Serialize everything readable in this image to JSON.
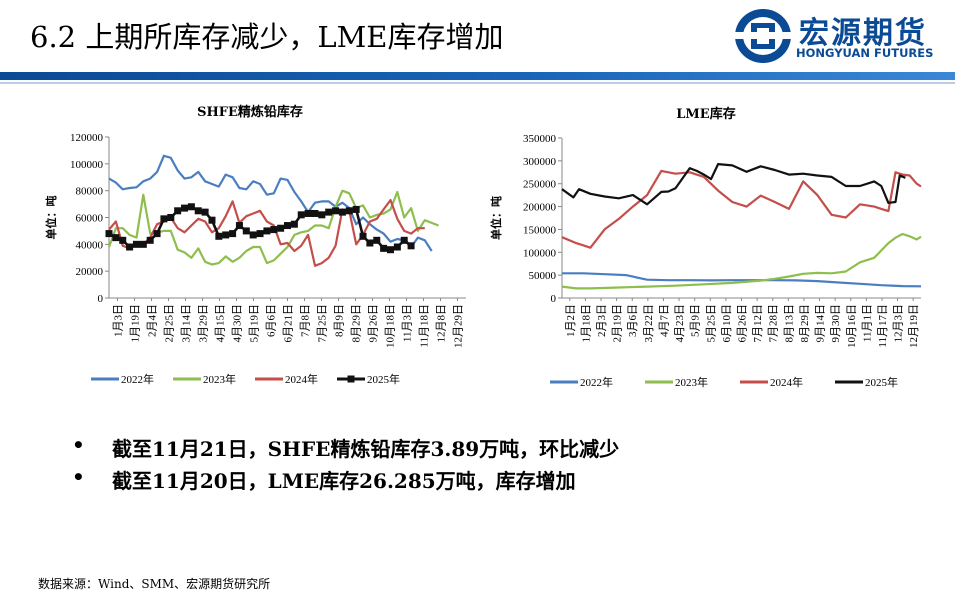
{
  "header": {
    "title": "6.2 上期所库存减少，LME库存增加",
    "logo_cn": "宏源期货",
    "logo_en": "HONGYUAN FUTURES",
    "rule_color": "#1a5fb4"
  },
  "bullets": [
    {
      "dot": "•",
      "text": "截至11月21日，SHFE精炼铅库存3.89万吨，环比减少"
    },
    {
      "dot": "•",
      "text": "截至11月20日，LME库存26.285万吨，库存增加"
    }
  ],
  "source": "数据来源：Wind、SMM、宏源期货研究所",
  "chart_data": [
    {
      "type": "line",
      "title": "SHFE精炼铅库存",
      "ylabel": "单位：吨",
      "xlabel": "",
      "ylim": [
        0,
        120000
      ],
      "yticks": [
        0,
        20000,
        40000,
        60000,
        80000,
        100000,
        120000
      ],
      "xtick_labels": [
        "1月3日",
        "1月19日",
        "2月4日",
        "2月25日",
        "3月14日",
        "3月29日",
        "4月15日",
        "4月30日",
        "5月19日",
        "6月6日",
        "6月21日",
        "7月8日",
        "7月25日",
        "8月9日",
        "8月29日",
        "9月26日",
        "10月18日",
        "11月3日",
        "11月18日",
        "12月8日",
        "12月29日"
      ],
      "x_range": [
        0,
        52
      ],
      "series": [
        {
          "name": "2022年",
          "color": "#4a7ec1",
          "marker": "none",
          "values": [
            89000,
            86000,
            81000,
            82000,
            82500,
            87000,
            89000,
            94000,
            106000,
            104500,
            95000,
            89000,
            90000,
            94000,
            87000,
            85000,
            83000,
            92000,
            90000,
            82000,
            81000,
            87000,
            85000,
            77000,
            78000,
            89000,
            88000,
            79000,
            72000,
            64000,
            71000,
            72000,
            72000,
            68000,
            71000,
            67000,
            55000,
            60000,
            55000,
            51000,
            48000,
            42000,
            44000,
            43000,
            38000,
            45000,
            43000,
            35000
          ]
        },
        {
          "name": "2023年",
          "color": "#8ebe4d",
          "marker": "none",
          "values": [
            38000,
            52000,
            52000,
            47000,
            45000,
            77000,
            48000,
            49000,
            50000,
            50000,
            36000,
            34000,
            30000,
            37000,
            27000,
            25000,
            26000,
            31000,
            27000,
            30000,
            35000,
            38000,
            38000,
            26000,
            28000,
            33000,
            38000,
            47000,
            49000,
            50000,
            54000,
            54000,
            52000,
            68000,
            80000,
            78000,
            67000,
            69000,
            60000,
            62000,
            63000,
            66000,
            79000,
            60000,
            67000,
            50000,
            58000,
            56000,
            54000
          ]
        },
        {
          "name": "2024年",
          "color": "#c44e4a",
          "marker": "none",
          "values": [
            51000,
            57000,
            39000,
            37000,
            40000,
            40000,
            45000,
            55000,
            57000,
            60000,
            52000,
            49000,
            54000,
            59000,
            57000,
            49000,
            52000,
            61000,
            72000,
            56000,
            61000,
            63000,
            65000,
            57000,
            54000,
            40000,
            41000,
            35000,
            39000,
            47000,
            24000,
            26000,
            30000,
            39000,
            66000,
            65000,
            40000,
            47000,
            57000,
            59000,
            66000,
            73000,
            59000,
            50000,
            48000,
            52000,
            52000
          ]
        },
        {
          "name": "2025年",
          "color": "#111111",
          "marker": "square",
          "values": [
            48000,
            45000,
            43000,
            38000,
            40000,
            40000,
            43000,
            48000,
            59000,
            60000,
            65000,
            67000,
            68000,
            65000,
            64000,
            58000,
            46000,
            47000,
            48000,
            54000,
            50000,
            47000,
            48000,
            50000,
            51000,
            52000,
            54000,
            55000,
            62000,
            63000,
            63000,
            62000,
            64000,
            65000,
            64000,
            65000,
            66000,
            46000,
            41000,
            43000,
            37000,
            36000,
            38000,
            43000,
            38900
          ]
        }
      ],
      "legend": "bottom"
    },
    {
      "type": "line",
      "title": "LME库存",
      "ylabel": "单位：吨",
      "xlabel": "",
      "ylim": [
        0,
        350000
      ],
      "yticks": [
        0,
        50000,
        100000,
        150000,
        200000,
        250000,
        300000,
        350000
      ],
      "xtick_labels": [
        "1月2日",
        "1月18日",
        "2月3日",
        "2月19日",
        "3月6日",
        "3月22日",
        "4月7日",
        "4月23日",
        "5月9日",
        "5月25日",
        "6月10日",
        "6月26日",
        "7月12日",
        "7月28日",
        "8月13日",
        "8月29日",
        "9月14日",
        "9月30日",
        "10月16日",
        "11月1日",
        "11月17日",
        "12月3日",
        "12月19日"
      ],
      "x_range": [
        0,
        253
      ],
      "series": [
        {
          "name": "2022年",
          "color": "#4a7ec1",
          "marker": "none",
          "x": [
            0,
            15,
            30,
            45,
            60,
            75,
            90,
            105,
            120,
            135,
            150,
            165,
            180,
            195,
            210,
            225,
            240,
            253
          ],
          "values": [
            54000,
            54000,
            52000,
            50000,
            40000,
            39000,
            39000,
            38500,
            39000,
            39000,
            39000,
            38500,
            37000,
            34000,
            31000,
            28000,
            26000,
            25500
          ]
        },
        {
          "name": "2023年",
          "color": "#8ebe4d",
          "marker": "none",
          "x": [
            0,
            10,
            20,
            40,
            60,
            80,
            100,
            120,
            140,
            150,
            160,
            170,
            180,
            190,
            200,
            210,
            220,
            230,
            235,
            240,
            245,
            250,
            253
          ],
          "values": [
            25000,
            21000,
            21000,
            23000,
            25000,
            27000,
            30000,
            33000,
            38000,
            42000,
            47000,
            53000,
            55000,
            54000,
            58000,
            78000,
            88000,
            120000,
            132000,
            140000,
            135000,
            128000,
            134000
          ]
        },
        {
          "name": "2024年",
          "color": "#c44e4a",
          "marker": "none",
          "x": [
            0,
            10,
            20,
            30,
            40,
            50,
            60,
            70,
            80,
            90,
            100,
            110,
            120,
            130,
            140,
            150,
            160,
            170,
            180,
            190,
            200,
            210,
            220,
            225,
            230,
            235,
            240,
            245,
            250,
            253
          ],
          "values": [
            133000,
            120000,
            110000,
            150000,
            173000,
            200000,
            225000,
            278000,
            272000,
            275000,
            265000,
            235000,
            210000,
            200000,
            224000,
            210000,
            195000,
            255000,
            225000,
            182000,
            176000,
            205000,
            200000,
            195000,
            190000,
            275000,
            270000,
            268000,
            250000,
            244000
          ]
        },
        {
          "name": "2025年",
          "color": "#111111",
          "marker": "none",
          "x": [
            0,
            8,
            12,
            20,
            30,
            40,
            50,
            60,
            70,
            75,
            80,
            90,
            95,
            100,
            105,
            110,
            120,
            130,
            140,
            150,
            160,
            170,
            180,
            190,
            200,
            210,
            220,
            225,
            230,
            235,
            238,
            242
          ],
          "values": [
            238000,
            220000,
            238000,
            228000,
            222000,
            218000,
            225000,
            205000,
            232000,
            233000,
            240000,
            284000,
            278000,
            270000,
            260000,
            293000,
            290000,
            276000,
            288000,
            280000,
            270000,
            272000,
            268000,
            265000,
            245000,
            245000,
            255000,
            245000,
            208000,
            210000,
            268000,
            262850
          ]
        }
      ],
      "legend": "bottom"
    }
  ]
}
